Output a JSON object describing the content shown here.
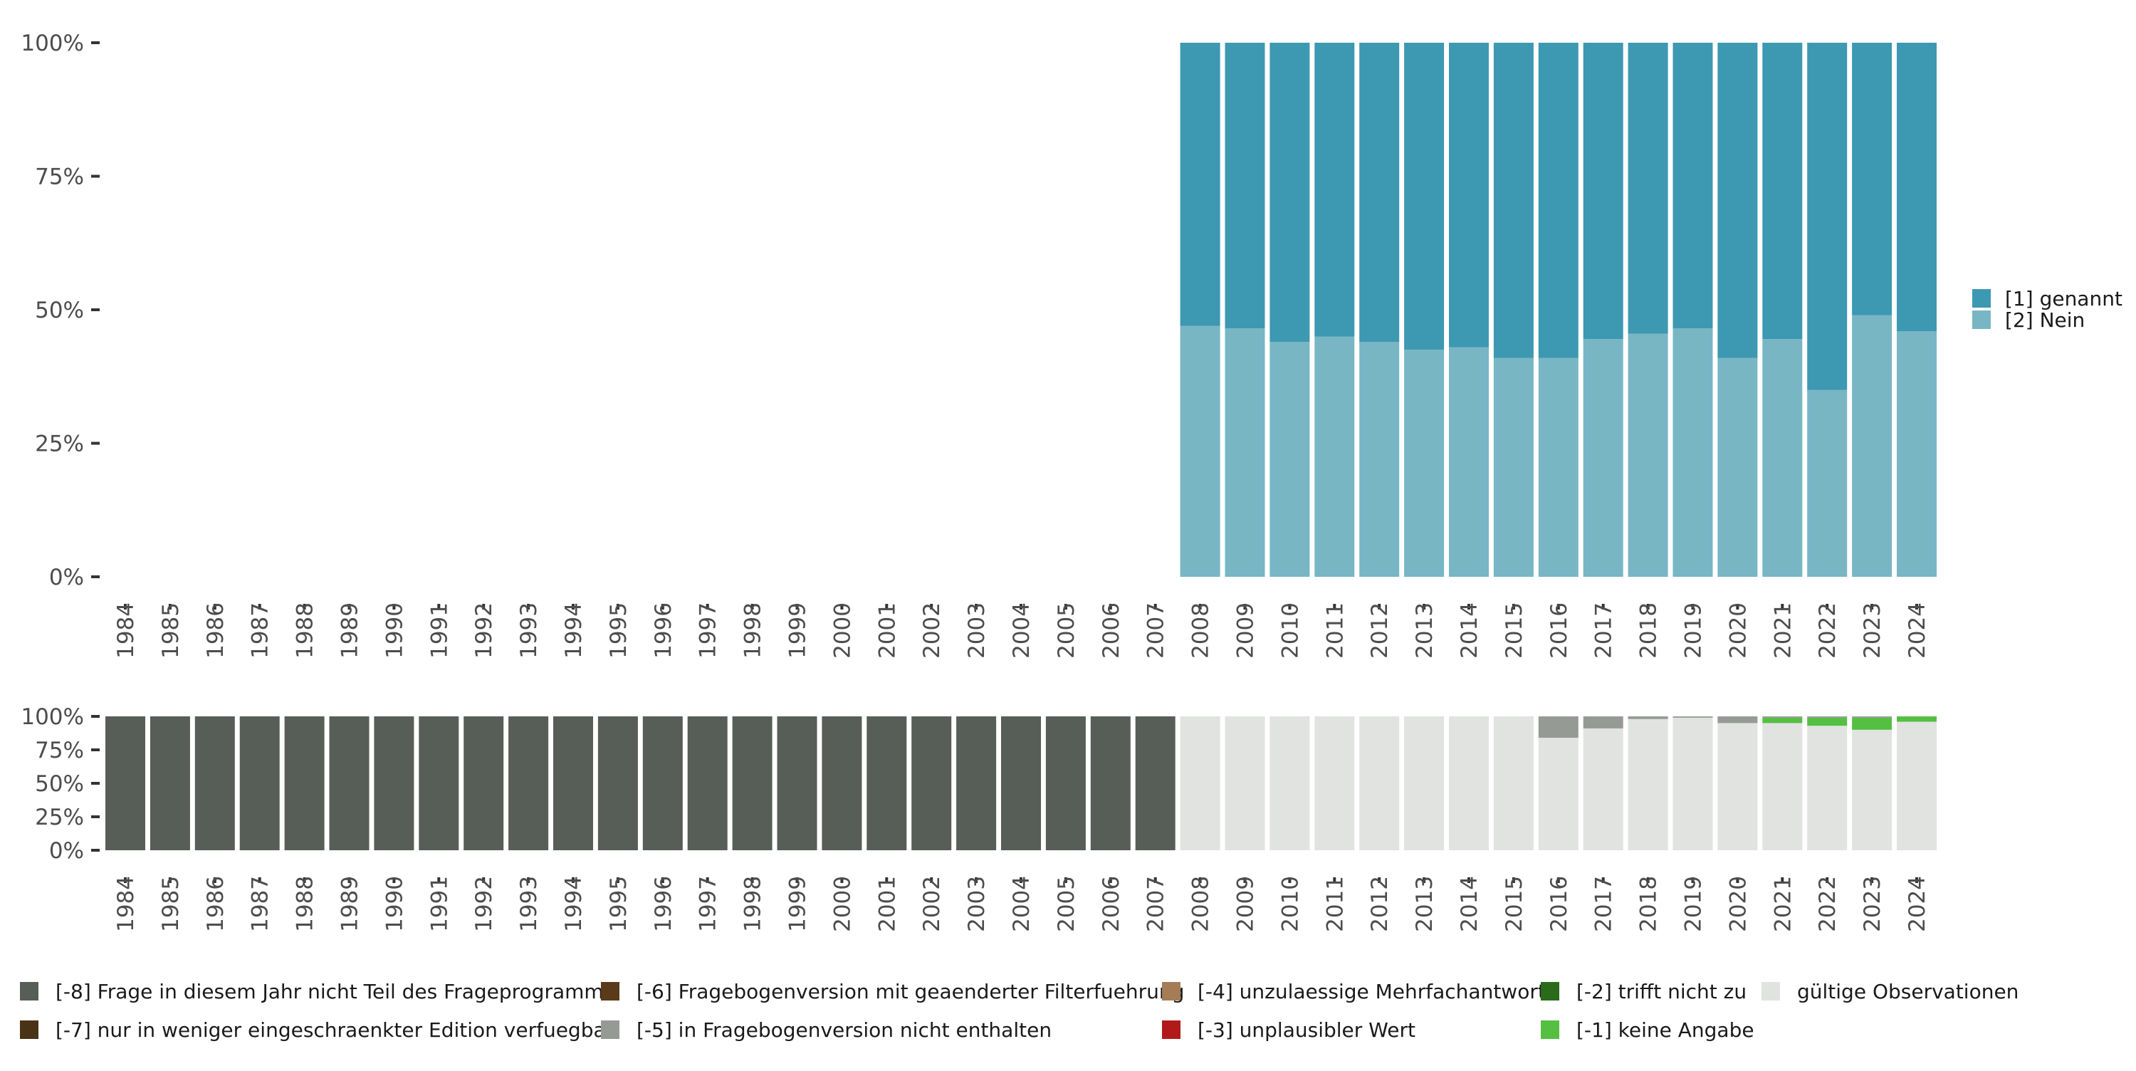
{
  "chart_data": [
    {
      "type": "bar",
      "stacked": true,
      "percent": true,
      "categories": [
        "1984",
        "1985",
        "1986",
        "1987",
        "1988",
        "1989",
        "1990",
        "1991",
        "1992",
        "1993",
        "1994",
        "1995",
        "1996",
        "1997",
        "1998",
        "1999",
        "2000",
        "2001",
        "2002",
        "2003",
        "2004",
        "2005",
        "2006",
        "2007",
        "2008",
        "2009",
        "2010",
        "2011",
        "2012",
        "2013",
        "2014",
        "2015",
        "2016",
        "2017",
        "2018",
        "2019",
        "2020",
        "2021",
        "2022",
        "2023",
        "2024"
      ],
      "y_ticks": [
        "0%",
        "25%",
        "50%",
        "75%",
        "100%"
      ],
      "ylim": [
        0,
        100
      ],
      "legend_position": "right",
      "series": [
        {
          "name": "[2] Nein",
          "color": "#78b6c4",
          "values": [
            null,
            null,
            null,
            null,
            null,
            null,
            null,
            null,
            null,
            null,
            null,
            null,
            null,
            null,
            null,
            null,
            null,
            null,
            null,
            null,
            null,
            null,
            null,
            null,
            47,
            46.5,
            44,
            45,
            44,
            42.5,
            43,
            41,
            41,
            44.5,
            45.5,
            46.5,
            41,
            44.5,
            35,
            49,
            46
          ]
        },
        {
          "name": "[1] genannt",
          "color": "#3d98b2",
          "values": [
            null,
            null,
            null,
            null,
            null,
            null,
            null,
            null,
            null,
            null,
            null,
            null,
            null,
            null,
            null,
            null,
            null,
            null,
            null,
            null,
            null,
            null,
            null,
            null,
            53,
            53.5,
            56,
            55,
            56,
            57.5,
            57,
            59,
            59,
            55.5,
            54.5,
            53.5,
            59,
            55.5,
            65,
            51,
            54
          ]
        }
      ]
    },
    {
      "type": "bar",
      "stacked": true,
      "percent": true,
      "categories": [
        "1984",
        "1985",
        "1986",
        "1987",
        "1988",
        "1989",
        "1990",
        "1991",
        "1992",
        "1993",
        "1994",
        "1995",
        "1996",
        "1997",
        "1998",
        "1999",
        "2000",
        "2001",
        "2002",
        "2003",
        "2004",
        "2005",
        "2006",
        "2007",
        "2008",
        "2009",
        "2010",
        "2011",
        "2012",
        "2013",
        "2014",
        "2015",
        "2016",
        "2017",
        "2018",
        "2019",
        "2020",
        "2021",
        "2022",
        "2023",
        "2024"
      ],
      "y_ticks": [
        "0%",
        "25%",
        "50%",
        "75%",
        "100%"
      ],
      "ylim": [
        0,
        100
      ],
      "legend_position": "bottom",
      "series": [
        {
          "name": "gültige Observationen",
          "color": "#e0e3df",
          "values": [
            0,
            0,
            0,
            0,
            0,
            0,
            0,
            0,
            0,
            0,
            0,
            0,
            0,
            0,
            0,
            0,
            0,
            0,
            0,
            0,
            0,
            0,
            0,
            0,
            100,
            100,
            100,
            100,
            100,
            100,
            100,
            100,
            84,
            91,
            98,
            99,
            95,
            95,
            93,
            90,
            96
          ]
        },
        {
          "name": "[-1] keine Angabe",
          "color": "#55bf42",
          "values": [
            0,
            0,
            0,
            0,
            0,
            0,
            0,
            0,
            0,
            0,
            0,
            0,
            0,
            0,
            0,
            0,
            0,
            0,
            0,
            0,
            0,
            0,
            0,
            0,
            0,
            0,
            0,
            0,
            0,
            0,
            0,
            0,
            0,
            0,
            0,
            0,
            0,
            4,
            6,
            9,
            4
          ]
        },
        {
          "name": "[-5] in Fragebogenversion nicht enthalten",
          "color": "#969a94",
          "values": [
            0,
            0,
            0,
            0,
            0,
            0,
            0,
            0,
            0,
            0,
            0,
            0,
            0,
            0,
            0,
            0,
            0,
            0,
            0,
            0,
            0,
            0,
            0,
            0,
            0,
            0,
            0,
            0,
            0,
            0,
            0,
            0,
            16,
            9,
            2,
            1,
            5,
            1,
            1,
            1,
            0
          ]
        },
        {
          "name": "[-8] Frage in diesem Jahr nicht Teil des Frageprogramms",
          "color": "#575d57",
          "values": [
            100,
            100,
            100,
            100,
            100,
            100,
            100,
            100,
            100,
            100,
            100,
            100,
            100,
            100,
            100,
            100,
            100,
            100,
            100,
            100,
            100,
            100,
            100,
            100,
            0,
            0,
            0,
            0,
            0,
            0,
            0,
            0,
            0,
            0,
            0,
            0,
            0,
            0,
            0,
            0,
            0
          ]
        }
      ]
    }
  ],
  "bottom_legend": [
    {
      "name": "[-8] Frage in diesem Jahr nicht Teil des Frageprogramms",
      "color": "#575d57"
    },
    {
      "name": "[-7] nur in weniger eingeschraenkter Edition verfuegbar",
      "color": "#4a3216"
    },
    {
      "name": "[-6] Fragebogenversion mit geaenderter Filterfuehrung",
      "color": "#5a3a18"
    },
    {
      "name": "[-5] in Fragebogenversion nicht enthalten",
      "color": "#969a94"
    },
    {
      "name": "[-4] unzulaessige Mehrfachantwort",
      "color": "#a47c55"
    },
    {
      "name": "[-3] unplausibler Wert",
      "color": "#b21a1a"
    },
    {
      "name": "[-2] trifft nicht zu",
      "color": "#2a6a1a"
    },
    {
      "name": "[-1] keine Angabe",
      "color": "#55bf42"
    },
    {
      "name": "gültige Observationen",
      "color": "#e0e3df"
    }
  ]
}
